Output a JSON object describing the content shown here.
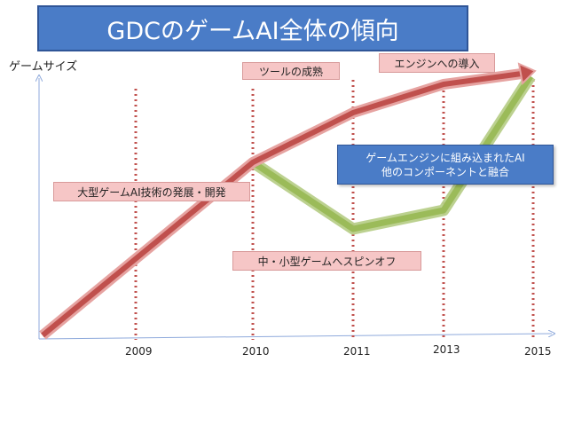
{
  "title": "GDCのゲームAI全体の傾向",
  "y_axis_label": "ゲームサイズ",
  "years": [
    "2009",
    "2010",
    "2011",
    "2013",
    "2015"
  ],
  "labels": {
    "large_ai": "大型ゲームAI技術の発展・開発",
    "tool_maturity": "ツールの成熟",
    "engine_adoption": "エンジンへの導入",
    "engine_integration_line1": "ゲームエンジンに組み込まれたAI",
    "engine_integration_line2": "他のコンポーネントと融合",
    "spinoff": "中・小型ゲームへスピンオフ"
  },
  "colors": {
    "title_bg": "#4a7cc7",
    "red_arrow": "#c0504d",
    "green_arrow": "#9bbb59",
    "pink_box": "#f6c6c6",
    "dotted_line": "#c0504d"
  }
}
